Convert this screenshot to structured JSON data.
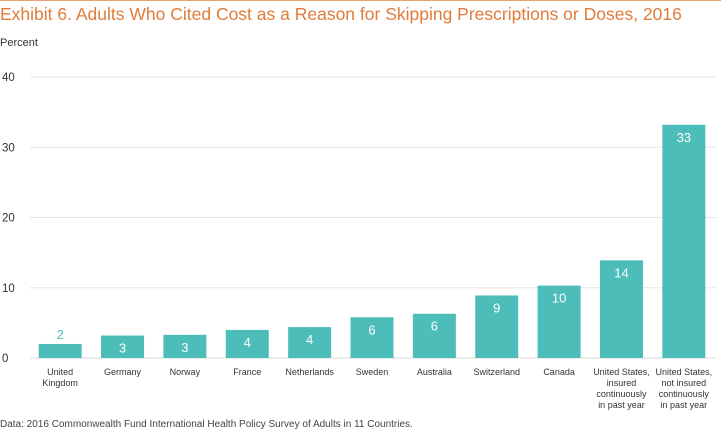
{
  "chart_data": {
    "type": "bar",
    "title": "Exhibit 6. Adults Who Cited Cost as a Reason for Skipping Prescriptions or Doses, 2016",
    "ylabel": "Percent",
    "xlabel": "",
    "ylim": [
      0,
      40
    ],
    "yticks": [
      0,
      10,
      20,
      30,
      40
    ],
    "grid": true,
    "categories": [
      [
        "United",
        "Kingdom"
      ],
      [
        "Germany"
      ],
      [
        "Norway"
      ],
      [
        "France"
      ],
      [
        "Netherlands"
      ],
      [
        "Sweden"
      ],
      [
        "Australia"
      ],
      [
        "Switzerland"
      ],
      [
        "Canada"
      ],
      [
        "United States,",
        "insured",
        "continuously",
        "in past year"
      ],
      [
        "United States,",
        "not insured",
        "continuously",
        "in past year"
      ]
    ],
    "values": [
      2,
      3.2,
      3.3,
      4,
      4.4,
      5.8,
      6.3,
      8.9,
      10.3,
      13.9,
      33.2
    ],
    "labels": [
      "2",
      "3",
      "3",
      "4",
      "4",
      "6",
      "6",
      "9",
      "10",
      "14",
      "33"
    ],
    "colors": {
      "bar": "#4dbdb9",
      "gridline": "#e5e5e5",
      "axis": "#d9d9d9",
      "title": "#e07b39"
    }
  },
  "note": "Data: 2016 Commonwealth Fund International Health Policy Survey of Adults in 11 Countries."
}
